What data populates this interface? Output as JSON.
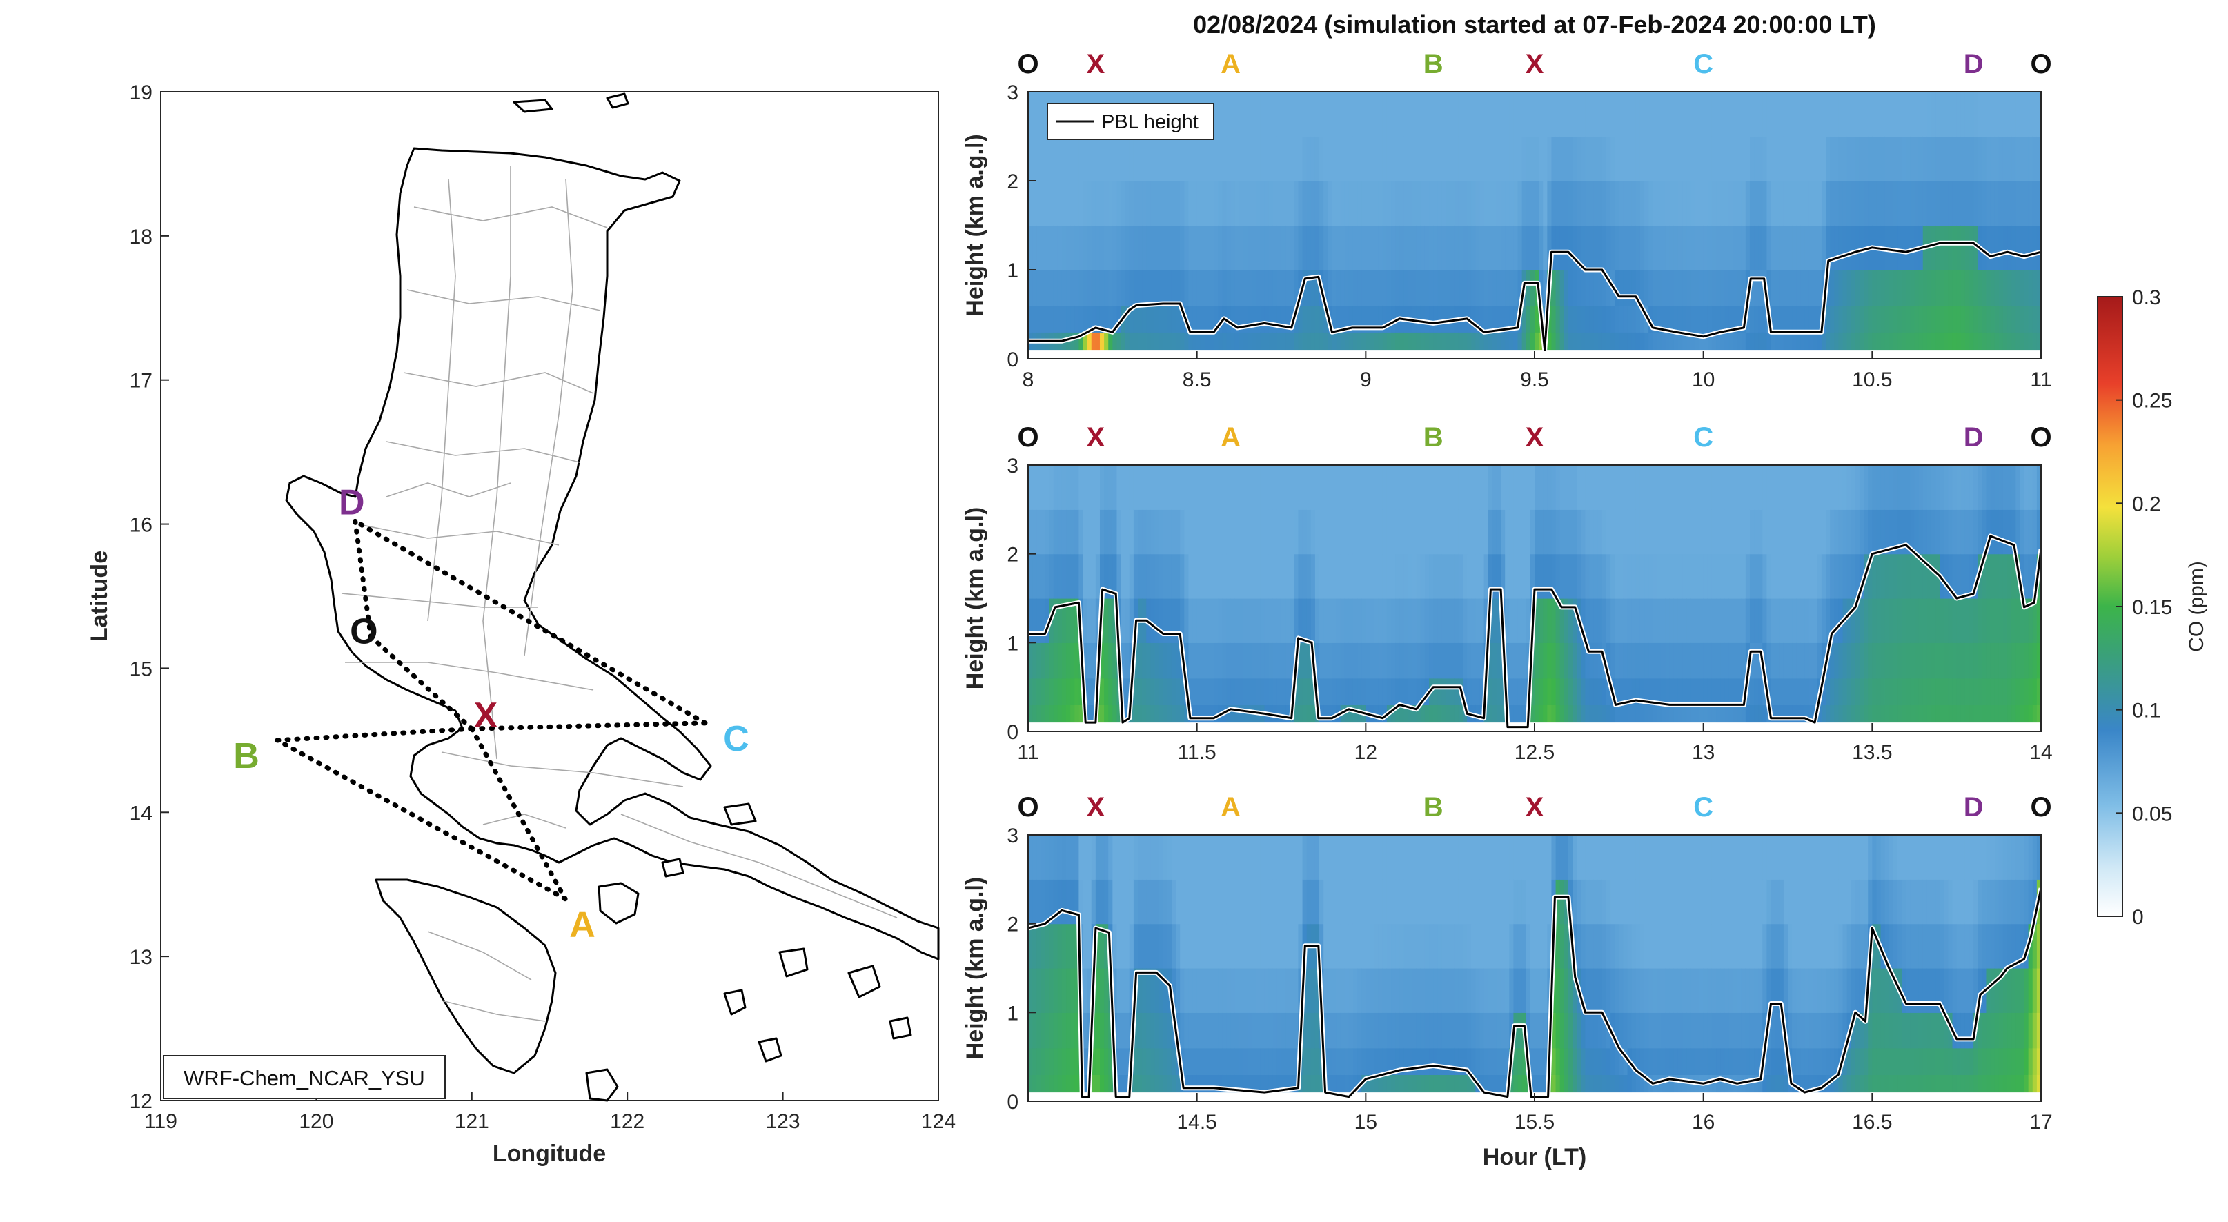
{
  "title": "02/08/2024 (simulation started at 07-Feb-2024 20:00:00 LT)",
  "colors": {
    "O": "#111111",
    "X": "#a2142f",
    "A": "#edb120",
    "B": "#77ac30",
    "C": "#4dbeee",
    "D": "#7e2f8e"
  },
  "map": {
    "xlabel": "Longitude",
    "ylabel": "Latitude",
    "xlim": [
      119,
      124
    ],
    "ylim": [
      12,
      19
    ],
    "xticks": [
      "119",
      "120",
      "121",
      "122",
      "123",
      "124"
    ],
    "yticks": [
      "12",
      "13",
      "14",
      "15",
      "16",
      "17",
      "18",
      "19"
    ],
    "model_label": "WRF-Chem_NCAR_YSU",
    "waypoints": [
      {
        "id": "O",
        "label": "O",
        "lon": 120.35,
        "lat": 15.22
      },
      {
        "id": "X",
        "label": "X",
        "lon": 121.0,
        "lat": 14.58
      },
      {
        "id": "A",
        "label": "A",
        "lon": 121.6,
        "lat": 13.4
      },
      {
        "id": "B",
        "label": "B",
        "lon": 119.75,
        "lat": 14.5
      },
      {
        "id": "C",
        "label": "C",
        "lon": 122.5,
        "lat": 14.62
      },
      {
        "id": "D",
        "label": "D",
        "lon": 120.25,
        "lat": 16.02
      }
    ],
    "route": [
      "O",
      "X",
      "A",
      "B",
      "X",
      "C",
      "D",
      "O"
    ]
  },
  "chart_data": {
    "type": "heatmap",
    "title": "02/08/2024 (simulation started at 07-Feb-2024 20:00:00 LT)",
    "xlabel": "Hour (LT)",
    "ylabel": "Height (km a.g.l)",
    "colorbar": {
      "label": "CO (ppm)",
      "range": [
        0,
        0.3
      ],
      "ticks": [
        "0",
        "0.05",
        "0.1",
        "0.15",
        "0.2",
        "0.25",
        "0.3"
      ]
    },
    "legend": {
      "entry": "PBL height",
      "position": "top-left"
    },
    "ylim": [
      0,
      3
    ],
    "yticks": [
      "0",
      "1",
      "2",
      "3"
    ],
    "panels": [
      {
        "xlim": [
          8,
          11
        ],
        "xticks": [
          "8",
          "8.5",
          "9",
          "9.5",
          "10",
          "10.5",
          "11"
        ],
        "waypoint_labels": [
          {
            "id": "O",
            "t": 8.0
          },
          {
            "id": "X",
            "t": 8.2
          },
          {
            "id": "A",
            "t": 8.6
          },
          {
            "id": "B",
            "t": 9.2
          },
          {
            "id": "X",
            "t": 9.5
          },
          {
            "id": "C",
            "t": 10.0
          },
          {
            "id": "D",
            "t": 10.8
          },
          {
            "id": "O",
            "t": 11.0
          }
        ],
        "pbl_height": [
          [
            8.0,
            0.2
          ],
          [
            8.1,
            0.2
          ],
          [
            8.15,
            0.25
          ],
          [
            8.2,
            0.35
          ],
          [
            8.25,
            0.3
          ],
          [
            8.3,
            0.55
          ],
          [
            8.32,
            0.6
          ],
          [
            8.4,
            0.62
          ],
          [
            8.45,
            0.62
          ],
          [
            8.48,
            0.3
          ],
          [
            8.55,
            0.3
          ],
          [
            8.58,
            0.45
          ],
          [
            8.62,
            0.35
          ],
          [
            8.7,
            0.4
          ],
          [
            8.78,
            0.35
          ],
          [
            8.82,
            0.9
          ],
          [
            8.86,
            0.92
          ],
          [
            8.9,
            0.3
          ],
          [
            8.96,
            0.35
          ],
          [
            9.05,
            0.35
          ],
          [
            9.1,
            0.45
          ],
          [
            9.2,
            0.4
          ],
          [
            9.3,
            0.45
          ],
          [
            9.35,
            0.3
          ],
          [
            9.45,
            0.35
          ],
          [
            9.47,
            0.85
          ],
          [
            9.51,
            0.85
          ],
          [
            9.53,
            0.1
          ],
          [
            9.55,
            1.2
          ],
          [
            9.6,
            1.2
          ],
          [
            9.65,
            1.0
          ],
          [
            9.7,
            1.0
          ],
          [
            9.75,
            0.7
          ],
          [
            9.8,
            0.7
          ],
          [
            9.85,
            0.35
          ],
          [
            9.92,
            0.3
          ],
          [
            10.0,
            0.25
          ],
          [
            10.05,
            0.3
          ],
          [
            10.12,
            0.35
          ],
          [
            10.14,
            0.9
          ],
          [
            10.18,
            0.9
          ],
          [
            10.2,
            0.3
          ],
          [
            10.3,
            0.3
          ],
          [
            10.35,
            0.3
          ],
          [
            10.37,
            1.1
          ],
          [
            10.45,
            1.2
          ],
          [
            10.5,
            1.25
          ],
          [
            10.6,
            1.2
          ],
          [
            10.7,
            1.3
          ],
          [
            10.8,
            1.3
          ],
          [
            10.85,
            1.15
          ],
          [
            10.9,
            1.2
          ],
          [
            10.95,
            1.15
          ],
          [
            11.0,
            1.2
          ]
        ],
        "co_profile": [
          [
            8.0,
            0.11
          ],
          [
            8.15,
            0.14
          ],
          [
            8.2,
            0.28
          ],
          [
            8.25,
            0.14
          ],
          [
            8.3,
            0.11
          ],
          [
            8.6,
            0.1
          ],
          [
            8.9,
            0.11
          ],
          [
            9.1,
            0.13
          ],
          [
            9.3,
            0.12
          ],
          [
            9.45,
            0.1
          ],
          [
            9.52,
            0.18
          ],
          [
            9.6,
            0.1
          ],
          [
            10.0,
            0.09
          ],
          [
            10.35,
            0.1
          ],
          [
            10.5,
            0.13
          ],
          [
            10.75,
            0.15
          ],
          [
            10.9,
            0.13
          ],
          [
            11.0,
            0.12
          ]
        ]
      },
      {
        "xlim": [
          11,
          14
        ],
        "xticks": [
          "11",
          "11.5",
          "12",
          "12.5",
          "13",
          "13.5",
          "14"
        ],
        "waypoint_labels": [
          {
            "id": "O",
            "t": 11.0
          },
          {
            "id": "X",
            "t": 11.2
          },
          {
            "id": "A",
            "t": 11.6
          },
          {
            "id": "B",
            "t": 12.2
          },
          {
            "id": "X",
            "t": 12.5
          },
          {
            "id": "C",
            "t": 13.0
          },
          {
            "id": "D",
            "t": 13.8
          },
          {
            "id": "O",
            "t": 14.0
          }
        ],
        "pbl_height": [
          [
            11.0,
            1.1
          ],
          [
            11.05,
            1.1
          ],
          [
            11.08,
            1.4
          ],
          [
            11.15,
            1.45
          ],
          [
            11.17,
            0.1
          ],
          [
            11.2,
            0.1
          ],
          [
            11.22,
            1.6
          ],
          [
            11.26,
            1.55
          ],
          [
            11.28,
            0.1
          ],
          [
            11.3,
            0.15
          ],
          [
            11.32,
            1.25
          ],
          [
            11.35,
            1.25
          ],
          [
            11.4,
            1.1
          ],
          [
            11.45,
            1.1
          ],
          [
            11.48,
            0.15
          ],
          [
            11.55,
            0.15
          ],
          [
            11.6,
            0.25
          ],
          [
            11.7,
            0.2
          ],
          [
            11.78,
            0.15
          ],
          [
            11.8,
            1.05
          ],
          [
            11.84,
            1.0
          ],
          [
            11.86,
            0.15
          ],
          [
            11.9,
            0.15
          ],
          [
            11.95,
            0.25
          ],
          [
            12.05,
            0.15
          ],
          [
            12.1,
            0.3
          ],
          [
            12.15,
            0.25
          ],
          [
            12.2,
            0.5
          ],
          [
            12.28,
            0.5
          ],
          [
            12.3,
            0.2
          ],
          [
            12.35,
            0.15
          ],
          [
            12.37,
            1.6
          ],
          [
            12.4,
            1.6
          ],
          [
            12.42,
            0.05
          ],
          [
            12.48,
            0.05
          ],
          [
            12.5,
            1.6
          ],
          [
            12.55,
            1.6
          ],
          [
            12.58,
            1.4
          ],
          [
            12.62,
            1.4
          ],
          [
            12.66,
            0.9
          ],
          [
            12.7,
            0.9
          ],
          [
            12.74,
            0.3
          ],
          [
            12.8,
            0.35
          ],
          [
            12.9,
            0.3
          ],
          [
            13.0,
            0.3
          ],
          [
            13.05,
            0.3
          ],
          [
            13.12,
            0.3
          ],
          [
            13.14,
            0.9
          ],
          [
            13.17,
            0.9
          ],
          [
            13.2,
            0.15
          ],
          [
            13.3,
            0.15
          ],
          [
            13.33,
            0.1
          ],
          [
            13.38,
            1.1
          ],
          [
            13.45,
            1.4
          ],
          [
            13.5,
            2.0
          ],
          [
            13.55,
            2.05
          ],
          [
            13.6,
            2.1
          ],
          [
            13.7,
            1.75
          ],
          [
            13.75,
            1.5
          ],
          [
            13.8,
            1.55
          ],
          [
            13.85,
            2.2
          ],
          [
            13.92,
            2.1
          ],
          [
            13.95,
            1.4
          ],
          [
            13.98,
            1.45
          ],
          [
            14.0,
            2.05
          ]
        ],
        "co_profile": [
          [
            11.0,
            0.13
          ],
          [
            11.2,
            0.17
          ],
          [
            11.3,
            0.12
          ],
          [
            11.5,
            0.1
          ],
          [
            11.8,
            0.12
          ],
          [
            12.0,
            0.13
          ],
          [
            12.2,
            0.13
          ],
          [
            12.4,
            0.11
          ],
          [
            12.55,
            0.16
          ],
          [
            12.65,
            0.1
          ],
          [
            13.0,
            0.09
          ],
          [
            13.35,
            0.1
          ],
          [
            13.5,
            0.13
          ],
          [
            13.7,
            0.14
          ],
          [
            13.9,
            0.14
          ],
          [
            14.0,
            0.16
          ]
        ]
      },
      {
        "xlim": [
          14,
          17
        ],
        "xticks": [
          "14.5",
          "15",
          "15.5",
          "16",
          "16.5",
          "17"
        ],
        "waypoint_labels": [
          {
            "id": "O",
            "t": 14.0
          },
          {
            "id": "X",
            "t": 14.2
          },
          {
            "id": "A",
            "t": 14.6
          },
          {
            "id": "B",
            "t": 15.2
          },
          {
            "id": "X",
            "t": 15.5
          },
          {
            "id": "C",
            "t": 16.0
          },
          {
            "id": "D",
            "t": 16.8
          },
          {
            "id": "O",
            "t": 17.0
          }
        ],
        "pbl_height": [
          [
            14.0,
            1.95
          ],
          [
            14.05,
            2.0
          ],
          [
            14.1,
            2.15
          ],
          [
            14.15,
            2.1
          ],
          [
            14.16,
            0.05
          ],
          [
            14.18,
            0.05
          ],
          [
            14.2,
            1.95
          ],
          [
            14.24,
            1.9
          ],
          [
            14.26,
            0.05
          ],
          [
            14.3,
            0.05
          ],
          [
            14.32,
            1.45
          ],
          [
            14.38,
            1.45
          ],
          [
            14.42,
            1.3
          ],
          [
            14.46,
            0.15
          ],
          [
            14.55,
            0.15
          ],
          [
            14.7,
            0.1
          ],
          [
            14.8,
            0.15
          ],
          [
            14.82,
            1.75
          ],
          [
            14.86,
            1.75
          ],
          [
            14.88,
            0.1
          ],
          [
            14.95,
            0.05
          ],
          [
            15.0,
            0.25
          ],
          [
            15.05,
            0.3
          ],
          [
            15.1,
            0.35
          ],
          [
            15.2,
            0.4
          ],
          [
            15.3,
            0.35
          ],
          [
            15.35,
            0.1
          ],
          [
            15.42,
            0.05
          ],
          [
            15.44,
            0.85
          ],
          [
            15.47,
            0.85
          ],
          [
            15.49,
            0.05
          ],
          [
            15.54,
            0.05
          ],
          [
            15.56,
            2.3
          ],
          [
            15.6,
            2.3
          ],
          [
            15.62,
            1.4
          ],
          [
            15.65,
            1.0
          ],
          [
            15.7,
            1.0
          ],
          [
            15.75,
            0.6
          ],
          [
            15.8,
            0.35
          ],
          [
            15.85,
            0.2
          ],
          [
            15.9,
            0.25
          ],
          [
            16.0,
            0.2
          ],
          [
            16.05,
            0.25
          ],
          [
            16.1,
            0.2
          ],
          [
            16.17,
            0.25
          ],
          [
            16.2,
            1.1
          ],
          [
            16.23,
            1.1
          ],
          [
            16.26,
            0.2
          ],
          [
            16.3,
            0.1
          ],
          [
            16.35,
            0.15
          ],
          [
            16.4,
            0.3
          ],
          [
            16.45,
            1.0
          ],
          [
            16.48,
            0.9
          ],
          [
            16.5,
            1.95
          ],
          [
            16.55,
            1.5
          ],
          [
            16.6,
            1.1
          ],
          [
            16.7,
            1.1
          ],
          [
            16.75,
            0.7
          ],
          [
            16.8,
            0.7
          ],
          [
            16.82,
            1.2
          ],
          [
            16.88,
            1.4
          ],
          [
            16.9,
            1.5
          ],
          [
            16.95,
            1.6
          ],
          [
            16.97,
            1.85
          ],
          [
            17.0,
            2.4
          ]
        ],
        "co_profile": [
          [
            14.0,
            0.13
          ],
          [
            14.2,
            0.16
          ],
          [
            14.3,
            0.12
          ],
          [
            14.5,
            0.1
          ],
          [
            14.8,
            0.11
          ],
          [
            15.0,
            0.12
          ],
          [
            15.2,
            0.13
          ],
          [
            15.4,
            0.13
          ],
          [
            15.55,
            0.17
          ],
          [
            15.65,
            0.1
          ],
          [
            16.0,
            0.09
          ],
          [
            16.35,
            0.1
          ],
          [
            16.5,
            0.13
          ],
          [
            16.8,
            0.14
          ],
          [
            16.95,
            0.15
          ],
          [
            17.0,
            0.2
          ]
        ]
      }
    ]
  }
}
